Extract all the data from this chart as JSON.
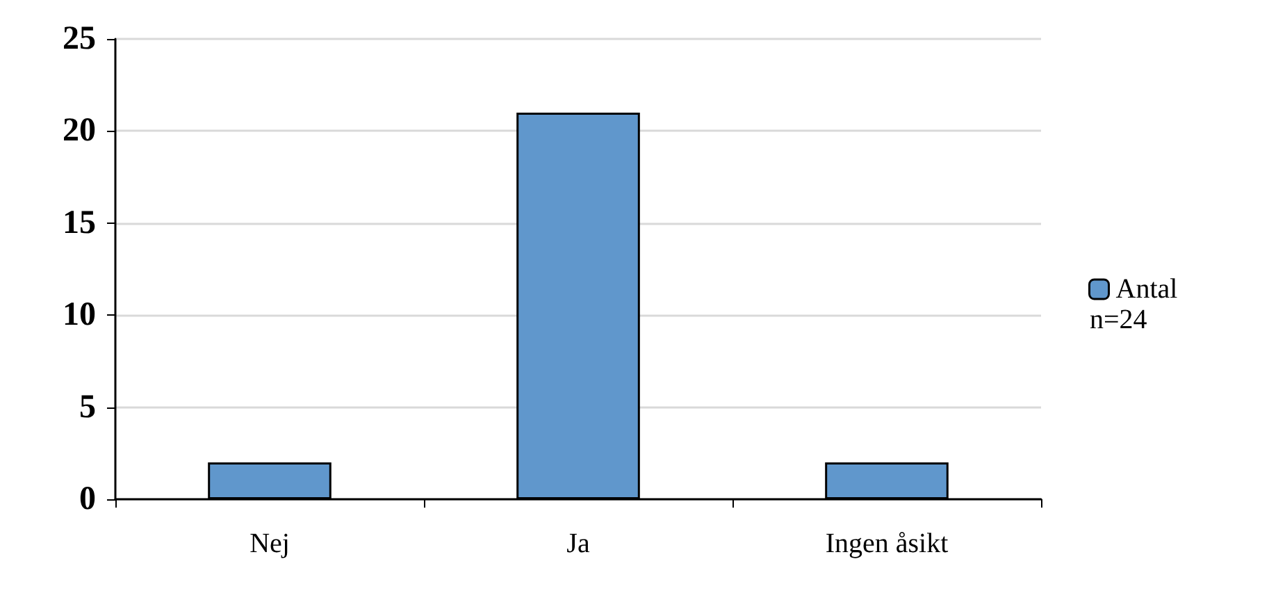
{
  "chart_data": {
    "type": "bar",
    "categories": [
      "Nej",
      "Ja",
      "Ingen åsikt"
    ],
    "series": [
      {
        "name": "Antal",
        "color": "#6097cc",
        "values": [
          2,
          21,
          2
        ]
      }
    ],
    "ylim": [
      0,
      25
    ],
    "yticks": [
      0,
      5,
      10,
      15,
      20,
      25
    ],
    "grid": "y",
    "legend": "right",
    "annotations": [
      "n=24"
    ]
  }
}
